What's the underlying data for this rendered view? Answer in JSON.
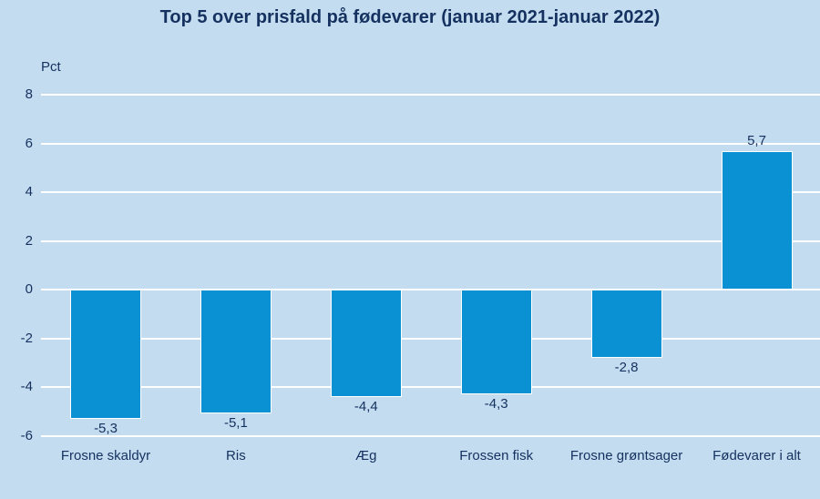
{
  "chart_data": {
    "type": "bar",
    "title": "Top 5 over prisfald på fødevarer (januar 2021-januar 2022)",
    "xlabel": "",
    "ylabel": "Pct",
    "categories": [
      "Frosne skaldyr",
      "Ris",
      "Æg",
      "Frossen fisk",
      "Frosne grøntsager",
      "Fødevarer i alt"
    ],
    "values": [
      -5.3,
      -5.1,
      -4.4,
      -4.3,
      -2.8,
      5.7
    ],
    "value_labels": [
      "-5,3",
      "-5,1",
      "-4,4",
      "-4,3",
      "-2,8",
      "5,7"
    ],
    "yticks": [
      8,
      6,
      4,
      2,
      0,
      -2,
      -4,
      -6
    ],
    "ylim": [
      -6,
      8
    ],
    "grid": true,
    "legend_position": "none",
    "colors": {
      "bar": "#0991d4",
      "background": "#c3dcf0",
      "gridline": "#ffffff",
      "text": "#15315f"
    }
  }
}
